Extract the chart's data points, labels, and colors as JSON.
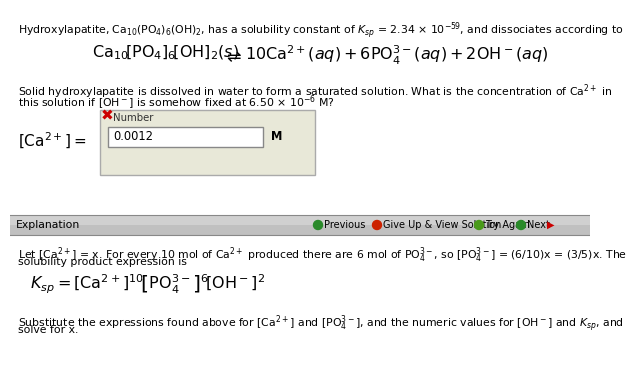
{
  "line1": "Hydroxylapatite, Ca$_{10}$(PO$_4$)$_6$(OH)$_2$, has a solubility constant of $K_{sp}$ = 2.34 × 10$^{-59}$, and dissociates according to",
  "eq_left": "$\\mathrm{Ca}_{10}\\!\\left[\\mathrm{PO}_4\\right]_6\\!\\left[\\mathrm{OH}\\right]_2(s)$",
  "eq_arrow": "$\\rightleftharpoons$",
  "eq_right": "$10\\mathrm{Ca}^{2+}(aq)+6\\mathrm{PO}_4^{3-}(aq)+2\\mathrm{OH}^-(aq)$",
  "q_line1": "Solid hydroxylapatite is dissolved in water to form a saturated solution. What is the concentration of Ca$^{2+}$ in",
  "q_line2": "this solution if [OH$^-$] is somehow fixed at 6.50 × 10$^{-6}$ M?",
  "answer_label": "$\\left[\\mathrm{Ca}^{2+}\\right]=$",
  "answer_value": "0.0012",
  "answer_unit": "M",
  "number_label": "Number",
  "explanation_label": "Explanation",
  "nav_prev": "Previous",
  "nav_giveup": "Give Up & View Solution",
  "nav_tryagain": "Try Again",
  "nav_next": "Next",
  "b_line1": "Let [Ca$^{2+}$] = x. For every 10 mol of Ca$^{2+}$ produced there are 6 mol of PO$_4^{3-}$, so [PO$_4^{3-}$] = (6/10)x = (3/5)x. The",
  "b_line2": "solubility product expression is",
  "ksp_eq": "$K_{sp}=\\left[\\mathrm{Ca}^{2+}\\right]^{10}\\!\\left[\\mathrm{PO}_4^{3-}\\right]^6\\!\\left[\\mathrm{OH}^-\\right]^2$",
  "b_line3": "Substitute the expressions found above for [Ca$^{2+}$] and [PO$_4^{3-}$], and the numeric values for [OH$^-$] and $K_{sp}$, and",
  "b_line4": "solve for x.",
  "white": "#ffffff",
  "box_fill": "#e8e8d8",
  "nav_fill": "#cccccc",
  "nav_fill2": "#d8d8d8",
  "black": "#000000",
  "gray_text": "#444444",
  "red": "#cc0000",
  "green1": "#2a8a2a",
  "green2": "#4a9a1a",
  "red_nav": "#cc2200",
  "border_gray": "#aaaaaa",
  "sep_line": "#999999"
}
